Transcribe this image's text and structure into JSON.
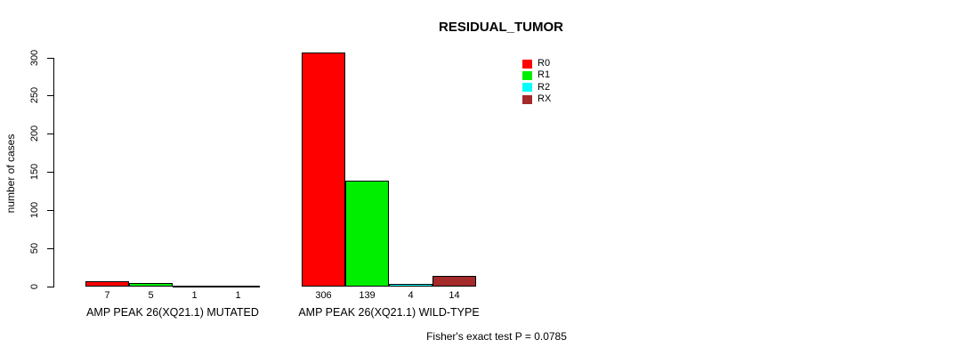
{
  "chart_data": {
    "type": "bar",
    "title": "RESIDUAL_TUMOR",
    "xlabel": "",
    "ylabel": "number of cases",
    "categories": [
      "AMP PEAK 26(XQ21.1) MUTATED",
      "AMP PEAK 26(XQ21.1) WILD-TYPE"
    ],
    "series": [
      {
        "name": "R0",
        "color": "#ff0000",
        "values": [
          7,
          306
        ]
      },
      {
        "name": "R1",
        "color": "#00ee00",
        "values": [
          5,
          139
        ]
      },
      {
        "name": "R2",
        "color": "#00ffff",
        "values": [
          1,
          4
        ]
      },
      {
        "name": "RX",
        "color": "#a52a2a",
        "values": [
          1,
          14
        ]
      }
    ],
    "yticks": [
      0,
      50,
      100,
      150,
      200,
      250,
      300
    ],
    "ylim": [
      0,
      306
    ],
    "grid": false,
    "bar_value_labels": true,
    "legend_position": "top-right",
    "annotation": "Fisher's exact test P = 0.0785"
  }
}
